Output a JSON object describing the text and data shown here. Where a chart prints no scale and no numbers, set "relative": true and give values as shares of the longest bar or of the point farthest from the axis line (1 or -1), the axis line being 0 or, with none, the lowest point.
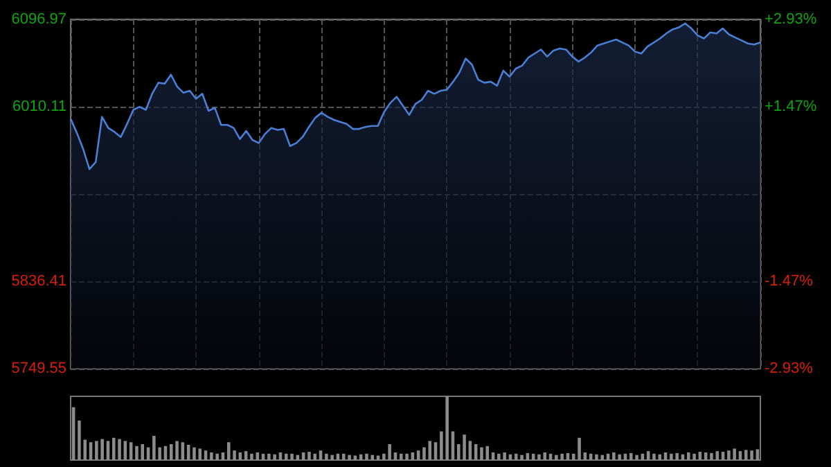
{
  "chart_data": [
    {
      "type": "area",
      "categories": [
        null,
        null,
        null,
        null,
        null,
        null,
        null,
        null,
        null,
        null,
        null,
        null,
        null,
        null,
        null,
        null,
        null,
        null,
        null,
        null,
        null,
        null,
        null,
        null,
        null,
        null,
        null,
        null,
        null,
        null,
        null,
        null,
        null,
        null,
        null,
        null,
        null,
        null,
        null,
        null,
        null,
        null,
        null,
        null,
        null,
        null,
        null,
        null,
        null,
        null,
        null,
        null,
        null,
        null,
        null,
        null,
        null,
        null,
        null,
        null,
        null,
        null,
        null,
        null,
        null,
        null,
        null,
        null,
        null,
        null,
        null,
        null,
        null,
        null,
        null,
        null,
        null,
        null,
        null,
        null,
        null,
        null,
        null,
        null,
        null,
        null,
        null,
        null,
        null,
        null,
        null,
        null,
        null,
        null,
        null,
        null,
        null,
        null,
        null,
        null,
        null,
        null,
        null,
        null,
        null,
        null,
        null,
        null,
        null,
        null,
        null
      ],
      "series": [
        {
          "color": "#4a7fd6",
          "values": [
            5998,
            5984,
            5968,
            5948,
            5955,
            6000,
            5989,
            5985,
            5980,
            5993,
            6007,
            6010,
            6007,
            6023,
            6034,
            6033,
            6042,
            6030,
            6024,
            6026,
            6018,
            6023,
            6006,
            6009,
            5992,
            5992,
            5989,
            5978,
            5986,
            5977,
            5974,
            5983,
            5989,
            5987,
            5988,
            5971,
            5974,
            5980,
            5990,
            5999,
            6004,
            6000,
            5997,
            5995,
            5993,
            5988,
            5988,
            5990,
            5991,
            5991,
            6005,
            6014,
            6020,
            6011,
            6002,
            6013,
            6017,
            6026,
            6023,
            6026,
            6027,
            6035,
            6044,
            6058,
            6052,
            6037,
            6034,
            6035,
            6031,
            6046,
            6040,
            6048,
            6051,
            6059,
            6063,
            6067,
            6060,
            6066,
            6068,
            6067,
            6060,
            6055,
            6059,
            6064,
            6071,
            6073,
            6075,
            6077,
            6074,
            6071,
            6065,
            6063,
            6070,
            6074,
            6078,
            6083,
            6087,
            6089,
            6093,
            6088,
            6081,
            6078,
            6084,
            6083,
            6088,
            6082,
            6079,
            6076,
            6073,
            6072,
            6074
          ]
        }
      ],
      "ylim": [
        5749.55,
        6096.97
      ],
      "yticks": [
        5749.55,
        5836.41,
        {
          "value": 5923.26,
          "label": null
        },
        6010.11,
        6096.97
      ],
      "y2lim": [
        -2.93,
        2.93
      ],
      "y2ticks": [
        {
          "value": -2.93,
          "label": "-2.93%"
        },
        {
          "value": -1.47,
          "label": "-1.47%"
        },
        {
          "value": 0,
          "label": null
        },
        {
          "value": 1.47,
          "label": "+1.47%"
        },
        {
          "value": 2.93,
          "label": "+2.93%"
        }
      ],
      "grid": true
    },
    {
      "type": "bar",
      "relative": true,
      "color": "#8c8c8c",
      "categories": [
        null,
        null,
        null,
        null,
        null,
        null,
        null,
        null,
        null,
        null,
        null,
        null,
        null,
        null,
        null,
        null,
        null,
        null,
        null,
        null,
        null,
        null,
        null,
        null,
        null,
        null,
        null,
        null,
        null,
        null,
        null,
        null,
        null,
        null,
        null,
        null,
        null,
        null,
        null,
        null,
        null,
        null,
        null,
        null,
        null,
        null,
        null,
        null,
        null,
        null,
        null,
        null,
        null,
        null,
        null,
        null,
        null,
        null,
        null,
        null,
        null,
        null,
        null,
        null,
        null,
        null,
        null,
        null,
        null,
        null,
        null,
        null,
        null,
        null,
        null,
        null,
        null,
        null,
        null,
        null,
        null,
        null,
        null,
        null,
        null,
        null,
        null,
        null,
        null,
        null,
        null,
        null,
        null,
        null,
        null,
        null,
        null,
        null,
        null,
        null,
        null,
        null,
        null,
        null,
        null,
        null,
        null,
        null,
        null,
        null,
        null,
        null,
        null,
        null,
        null,
        null,
        null,
        null,
        null,
        null
      ],
      "values": [
        0.83,
        0.62,
        0.32,
        0.28,
        0.3,
        0.33,
        0.3,
        0.35,
        0.33,
        0.3,
        0.28,
        0.22,
        0.25,
        0.2,
        0.38,
        0.2,
        0.22,
        0.25,
        0.3,
        0.28,
        0.24,
        0.2,
        0.18,
        0.15,
        0.12,
        0.1,
        0.12,
        0.28,
        0.15,
        0.12,
        0.14,
        0.1,
        0.12,
        0.1,
        0.1,
        0.09,
        0.12,
        0.1,
        0.1,
        0.08,
        0.12,
        0.13,
        0.1,
        0.15,
        0.1,
        0.08,
        0.1,
        0.1,
        0.08,
        0.07,
        0.09,
        0.1,
        0.08,
        0.07,
        0.1,
        0.25,
        0.12,
        0.1,
        0.1,
        0.12,
        0.15,
        0.2,
        0.3,
        0.28,
        0.45,
        1.0,
        0.45,
        0.25,
        0.4,
        0.3,
        0.25,
        0.2,
        0.22,
        0.12,
        0.1,
        0.12,
        0.09,
        0.1,
        0.08,
        0.11,
        0.1,
        0.09,
        0.12,
        0.1,
        0.08,
        0.1,
        0.11,
        0.1,
        0.35,
        0.12,
        0.1,
        0.09,
        0.08,
        0.1,
        0.12,
        0.09,
        0.1,
        0.11,
        0.08,
        0.1,
        0.14,
        0.1,
        0.09,
        0.12,
        0.1,
        0.11,
        0.09,
        0.12,
        0.1,
        0.13,
        0.12,
        0.11,
        0.14,
        0.13,
        0.15,
        0.18,
        0.14,
        0.16,
        0.15,
        0.17
      ]
    }
  ]
}
